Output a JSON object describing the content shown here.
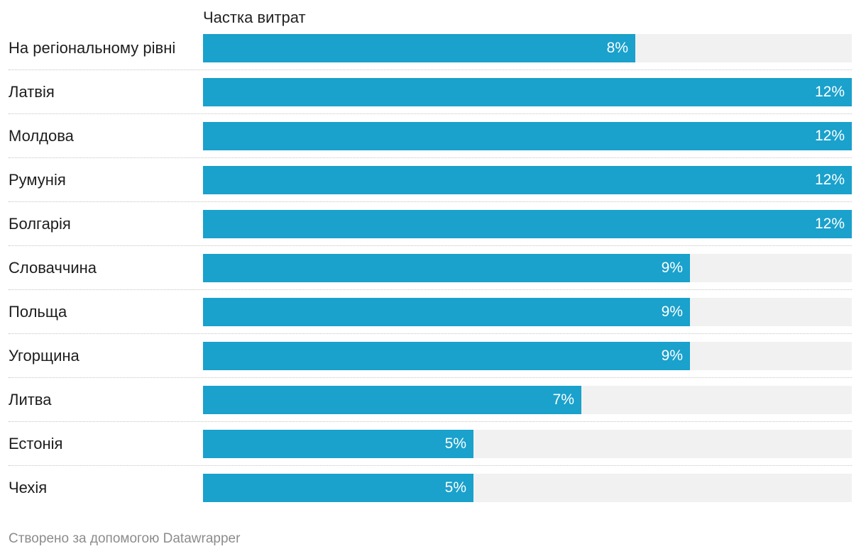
{
  "chart_data": {
    "type": "bar",
    "column_header": "Частка витрат",
    "categories": [
      "На регіональному рівні",
      "Латвія",
      "Молдова",
      "Румунія",
      "Болгарія",
      "Словаччина",
      "Польща",
      "Угорщина",
      "Литва",
      "Естонія",
      "Чехія"
    ],
    "values": [
      8,
      12,
      12,
      12,
      12,
      9,
      9,
      9,
      7,
      5,
      5
    ],
    "value_labels": [
      "8%",
      "12%",
      "12%",
      "12%",
      "12%",
      "9%",
      "9%",
      "9%",
      "7%",
      "5%",
      "5%"
    ],
    "xlim": [
      0,
      12
    ],
    "bar_color": "#1aa1cc",
    "track_color": "#f1f1f1",
    "orientation": "horizontal",
    "grid": false
  },
  "footer": {
    "credit": "Створено за допомогою Datawrapper"
  }
}
